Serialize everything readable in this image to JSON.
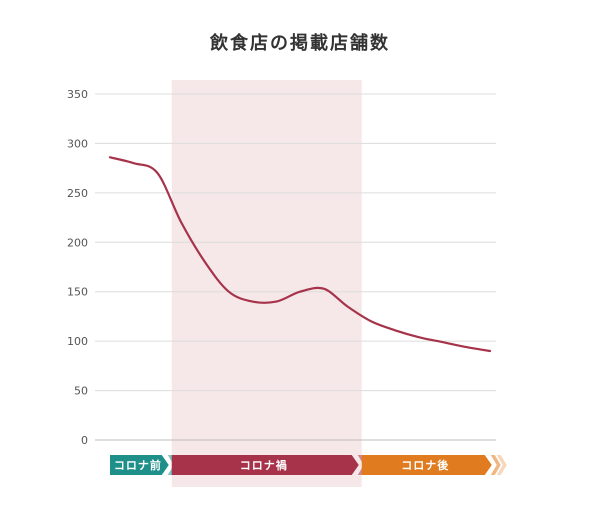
{
  "chart_data": {
    "type": "line",
    "title": "飲食店の掲載店舗数",
    "xlabel": "",
    "ylabel": "",
    "ylim": [
      0,
      350
    ],
    "yticks": [
      0,
      50,
      100,
      150,
      200,
      250,
      300,
      350
    ],
    "grid": true,
    "legend": "none",
    "series": [
      {
        "color": "#a6334a",
        "x": [
          0,
          0.5,
          1,
          1.5,
          2,
          2.5,
          3,
          3.5,
          4,
          4.5,
          5,
          5.5,
          6,
          6.5,
          7,
          7.5,
          8
        ],
        "values": [
          286,
          280,
          270,
          220,
          180,
          150,
          140,
          140,
          150,
          153,
          135,
          120,
          111,
          104,
          99,
          94,
          90
        ]
      }
    ],
    "phases": [
      {
        "label": "コロナ前",
        "color": "#1f8f8a",
        "start": 0,
        "end": 1.3
      },
      {
        "label": "コロナ禍",
        "color": "#a6334a",
        "start": 1.3,
        "end": 5.3
      },
      {
        "label": "コロナ後",
        "color": "#e07b1f",
        "start": 5.3,
        "end": 8.1
      }
    ],
    "highlight": {
      "phase": "コロナ禍",
      "color": "#f6e8e8"
    }
  }
}
